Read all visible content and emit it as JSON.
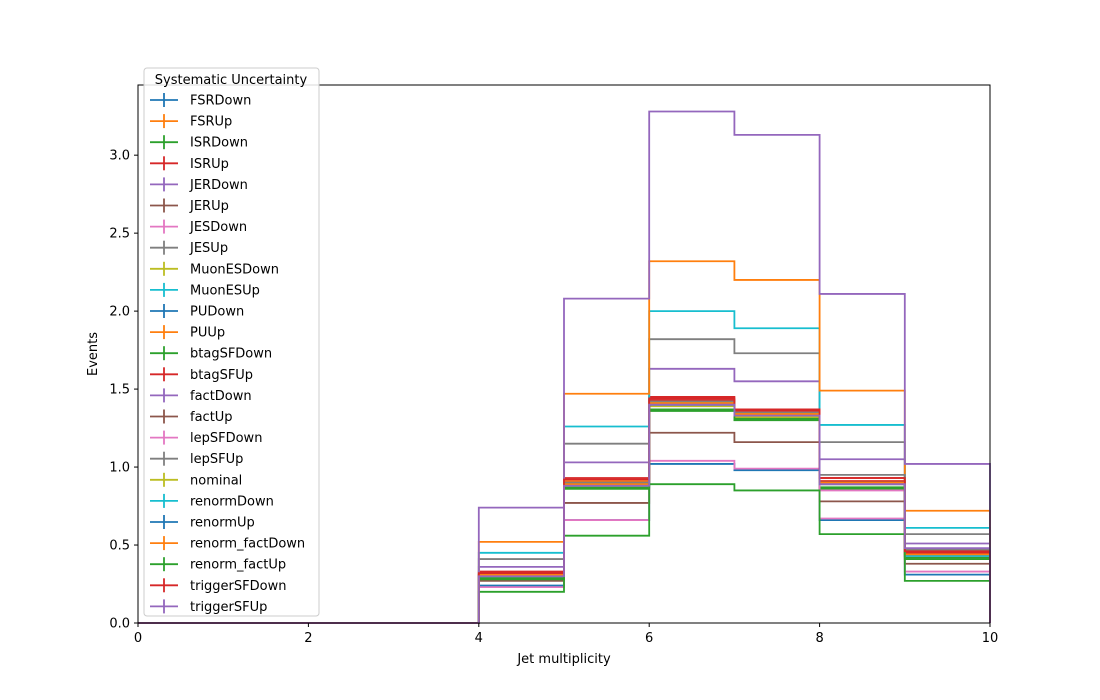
{
  "chart_data": {
    "type": "step",
    "title": "",
    "xlabel": "Jet multiplicity",
    "ylabel": "Events",
    "xlim": [
      0,
      10
    ],
    "ylim": [
      0,
      3.45
    ],
    "xticks": [
      0,
      2,
      4,
      6,
      8,
      10
    ],
    "yticks": [
      0.0,
      0.5,
      1.0,
      1.5,
      2.0,
      2.5,
      3.0
    ],
    "ytick_labels": [
      "0.0",
      "0.5",
      "1.0",
      "1.5",
      "2.0",
      "2.5",
      "3.0"
    ],
    "bin_edges": [
      0,
      1,
      2,
      3,
      4,
      5,
      6,
      7,
      8,
      9,
      10
    ],
    "grid": false,
    "legend": {
      "title": "Systematic Uncertainty",
      "placement": "upper-left"
    },
    "series": [
      {
        "name": "FSRDown",
        "color": "#1f77b4",
        "values": [
          0,
          0,
          0,
          0,
          0.24,
          0.66,
          1.02,
          0.98,
          0.66,
          0.31
        ]
      },
      {
        "name": "FSRUp",
        "color": "#ff7f0e",
        "values": [
          0,
          0,
          0,
          0,
          0.31,
          0.91,
          1.42,
          1.34,
          0.91,
          0.45
        ]
      },
      {
        "name": "ISRDown",
        "color": "#2ca02c",
        "values": [
          0,
          0,
          0,
          0,
          0.29,
          0.87,
          1.36,
          1.3,
          0.87,
          0.42
        ]
      },
      {
        "name": "ISRUp",
        "color": "#d62728",
        "values": [
          0,
          0,
          0,
          0,
          0.33,
          0.93,
          1.45,
          1.37,
          0.93,
          0.45
        ]
      },
      {
        "name": "JERDown",
        "color": "#9467bd",
        "values": [
          0,
          0,
          0,
          0,
          0.36,
          1.03,
          1.63,
          1.55,
          1.05,
          0.51
        ]
      },
      {
        "name": "JERUp",
        "color": "#8c564b",
        "values": [
          0,
          0,
          0,
          0,
          0.27,
          0.77,
          1.22,
          1.16,
          0.78,
          0.38
        ]
      },
      {
        "name": "JESDown",
        "color": "#e377c2",
        "values": [
          0,
          0,
          0,
          0,
          0.23,
          0.66,
          1.04,
          0.99,
          0.67,
          0.33
        ]
      },
      {
        "name": "JESUp",
        "color": "#7f7f7f",
        "values": [
          0,
          0,
          0,
          0,
          0.41,
          1.15,
          1.82,
          1.73,
          1.16,
          0.57
        ]
      },
      {
        "name": "MuonESDown",
        "color": "#bcbd22",
        "values": [
          0,
          0,
          0,
          0,
          0.3,
          0.88,
          1.39,
          1.32,
          0.89,
          0.43
        ]
      },
      {
        "name": "MuonESUp",
        "color": "#17becf",
        "values": [
          0,
          0,
          0,
          0,
          0.45,
          1.26,
          2.0,
          1.89,
          1.27,
          0.61
        ]
      },
      {
        "name": "PUDown",
        "color": "#1f77b4",
        "values": [
          0,
          0,
          0,
          0,
          0.3,
          0.89,
          1.41,
          1.34,
          0.9,
          0.44
        ]
      },
      {
        "name": "PUUp",
        "color": "#ff7f0e",
        "values": [
          0,
          0,
          0,
          0,
          0.52,
          1.47,
          2.32,
          2.2,
          1.49,
          0.72
        ]
      },
      {
        "name": "btagSFDown",
        "color": "#2ca02c",
        "values": [
          0,
          0,
          0,
          0,
          0.28,
          0.86,
          1.37,
          1.31,
          0.86,
          0.41
        ]
      },
      {
        "name": "btagSFUp",
        "color": "#d62728",
        "values": [
          0,
          0,
          0,
          0,
          0.31,
          0.9,
          1.43,
          1.36,
          0.91,
          0.44
        ]
      },
      {
        "name": "factDown",
        "color": "#9467bd",
        "values": [
          0,
          0,
          0,
          0,
          0.74,
          2.08,
          3.28,
          3.13,
          2.11,
          1.02
        ]
      },
      {
        "name": "factUp",
        "color": "#8c564b",
        "values": [
          0,
          0,
          0,
          0,
          0.31,
          0.89,
          1.41,
          1.33,
          0.89,
          0.43
        ]
      },
      {
        "name": "lepSFDown",
        "color": "#e377c2",
        "values": [
          0,
          0,
          0,
          0,
          0.3,
          0.88,
          1.4,
          1.33,
          0.85,
          0.43
        ]
      },
      {
        "name": "lepSFUp",
        "color": "#7f7f7f",
        "values": [
          0,
          0,
          0,
          0,
          0.31,
          0.9,
          1.42,
          1.35,
          0.95,
          0.47
        ]
      },
      {
        "name": "nominal",
        "color": "#bcbd22",
        "values": [
          0,
          0,
          0,
          0,
          0.3,
          0.89,
          1.41,
          1.34,
          0.9,
          0.44
        ]
      },
      {
        "name": "renormDown",
        "color": "#17becf",
        "values": [
          0,
          0,
          0,
          0,
          0.3,
          0.88,
          1.4,
          1.33,
          0.89,
          0.43
        ]
      },
      {
        "name": "renormUp",
        "color": "#1f77b4",
        "values": [
          0,
          0,
          0,
          0,
          0.3,
          0.89,
          1.4,
          1.33,
          0.9,
          0.44
        ]
      },
      {
        "name": "renorm_factDown",
        "color": "#ff7f0e",
        "values": [
          0,
          0,
          0,
          0,
          0.31,
          0.89,
          1.41,
          1.34,
          0.9,
          0.44
        ]
      },
      {
        "name": "renorm_factUp",
        "color": "#2ca02c",
        "values": [
          0,
          0,
          0,
          0,
          0.2,
          0.56,
          0.89,
          0.85,
          0.57,
          0.27
        ]
      },
      {
        "name": "triggerSFDown",
        "color": "#d62728",
        "values": [
          0,
          0,
          0,
          0,
          0.32,
          0.92,
          1.44,
          1.37,
          0.93,
          0.46
        ]
      },
      {
        "name": "triggerSFUp",
        "color": "#9467bd",
        "values": [
          0,
          0,
          0,
          0,
          0.3,
          0.88,
          1.4,
          1.33,
          0.89,
          0.48
        ]
      }
    ]
  }
}
